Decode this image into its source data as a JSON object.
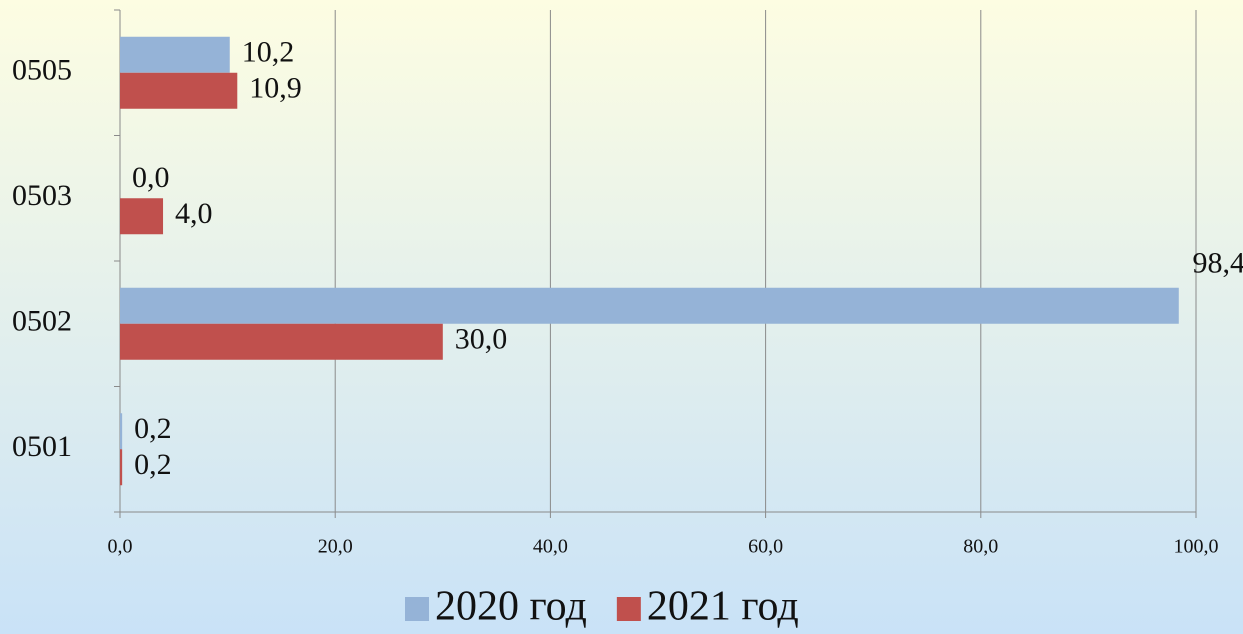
{
  "chart_data": {
    "type": "hbar",
    "categories": [
      "0505",
      "0503",
      "0502",
      "0501"
    ],
    "series": [
      {
        "name": "2020 год",
        "color": "#95b3d7",
        "values": [
          10.2,
          0.0,
          98.4,
          0.2
        ],
        "value_labels": [
          "10,2",
          "0,0",
          "98,4",
          "0,2"
        ]
      },
      {
        "name": "2021 год",
        "color": "#c0504d",
        "values": [
          10.9,
          4.0,
          30.0,
          0.2
        ],
        "value_labels": [
          "10,9",
          "4,0",
          "30,0",
          "0,2"
        ]
      }
    ],
    "xlim": [
      0,
      100
    ],
    "xticks": [
      {
        "value": 0,
        "label": "0,0"
      },
      {
        "value": 20,
        "label": "20,0"
      },
      {
        "value": 40,
        "label": "40,0"
      },
      {
        "value": 60,
        "label": "60,0"
      },
      {
        "value": 80,
        "label": "80,0"
      },
      {
        "value": 100,
        "label": "100,0"
      }
    ],
    "grid": true,
    "legend": "bottom"
  }
}
